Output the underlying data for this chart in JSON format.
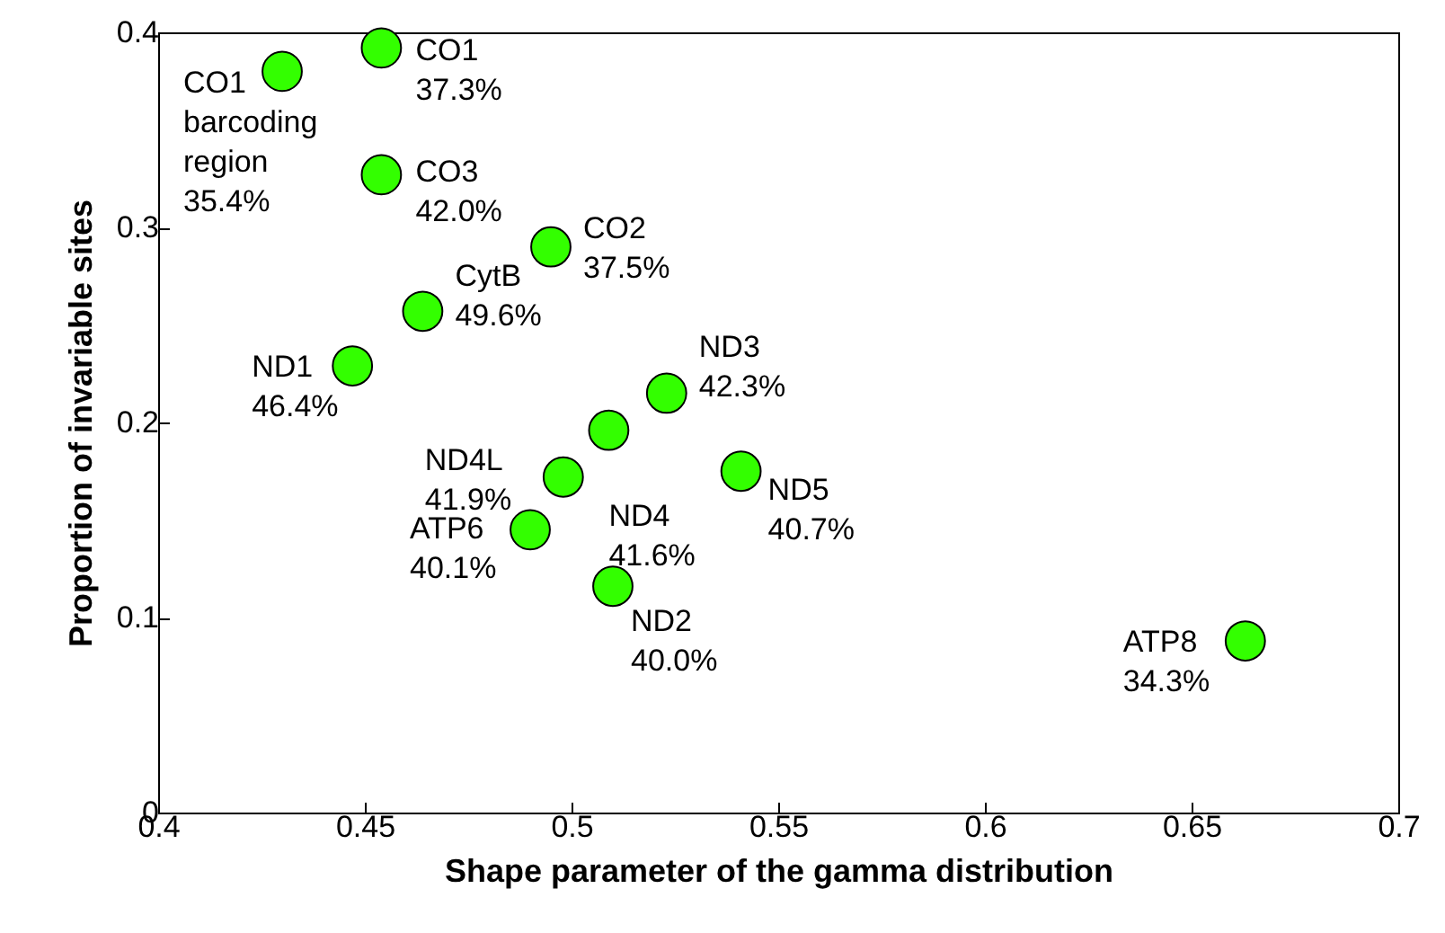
{
  "chart_data": {
    "type": "scatter",
    "xlabel": "Shape parameter of the gamma distribution",
    "ylabel": "Proportion of invariable sites",
    "x": [
      0.43,
      0.454,
      0.454,
      0.495,
      0.464,
      0.447,
      0.523,
      0.509,
      0.498,
      0.541,
      0.49,
      0.51,
      0.663
    ],
    "series": [
      {
        "color": "#33ff00",
        "values": [
          0.38,
          0.392,
          0.327,
          0.29,
          0.257,
          0.229,
          0.215,
          0.196,
          0.172,
          0.175,
          0.145,
          0.116,
          0.088
        ]
      }
    ],
    "annotations": [
      {
        "text": "CO1\nbarcoding\nregion\n35.4%",
        "x": 0.43,
        "y": 0.38
      },
      {
        "text": "CO1\n37.3%",
        "x": 0.454,
        "y": 0.392
      },
      {
        "text": "CO3\n42.0%",
        "x": 0.454,
        "y": 0.327
      },
      {
        "text": "CO2\n37.5%",
        "x": 0.495,
        "y": 0.29
      },
      {
        "text": "CytB\n49.6%",
        "x": 0.464,
        "y": 0.257
      },
      {
        "text": "ND1\n46.4%",
        "x": 0.447,
        "y": 0.229
      },
      {
        "text": "ND3\n42.3%",
        "x": 0.523,
        "y": 0.215
      },
      {
        "text": "ND4L\n41.9%",
        "x": 0.498,
        "y": 0.172
      },
      {
        "text": "ND4\n41.6%",
        "x": 0.509,
        "y": 0.196
      },
      {
        "text": "ND5\n40.7%",
        "x": 0.541,
        "y": 0.175
      },
      {
        "text": "ATP6\n40.1%",
        "x": 0.49,
        "y": 0.145
      },
      {
        "text": "ND2\n40.0%",
        "x": 0.51,
        "y": 0.116
      },
      {
        "text": "ATP8\n34.3%",
        "x": 0.663,
        "y": 0.088
      }
    ],
    "xlim": [
      0.4,
      0.7
    ],
    "xticks": [
      0.4,
      0.45,
      0.5,
      0.55,
      0.6,
      0.65,
      0.7
    ],
    "ylim": [
      0,
      0.4
    ],
    "yticks": [
      0,
      0.1,
      0.2,
      0.3,
      0.4
    ],
    "marker": "circle",
    "grid": false
  }
}
